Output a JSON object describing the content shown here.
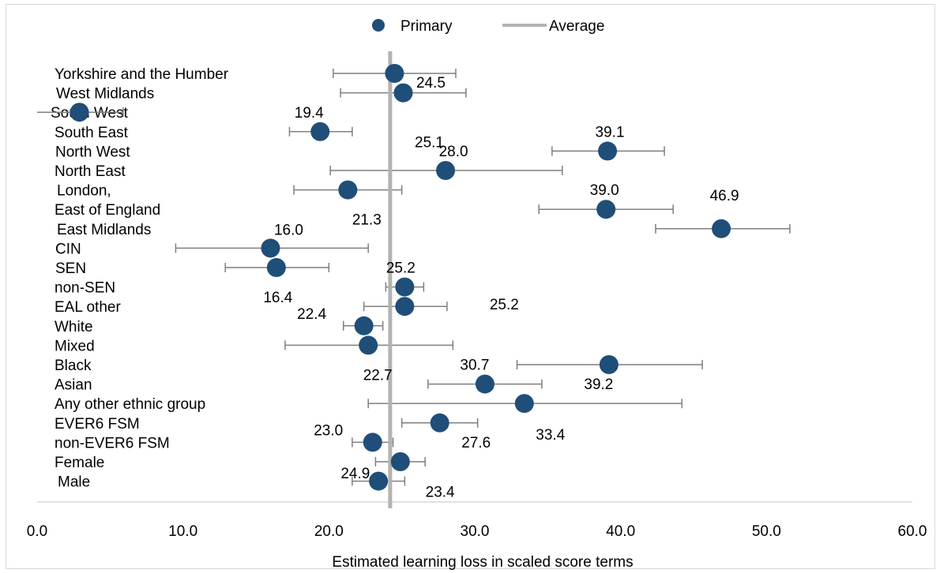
{
  "chart_data": {
    "type": "scatter",
    "xlabel": "Estimated learning loss in scaled score terms",
    "xlim": [
      0,
      60
    ],
    "x_ticks": [
      "0.0",
      "10.0",
      "20.0",
      "30.0",
      "40.0",
      "50.0",
      "60.0"
    ],
    "x_tick_values": [
      0,
      10,
      20,
      30,
      40,
      50,
      60
    ],
    "grid": false,
    "legend_position": "top",
    "legend": [
      {
        "name": "Primary",
        "marker": "circle",
        "color": "#1f4e79"
      },
      {
        "name": "Average",
        "marker": "line",
        "color": "#b3b3b3"
      }
    ],
    "average": 24.2,
    "categories": [
      "Yorkshire and the Humber",
      "West Midlands",
      "South West",
      "South East",
      "North West",
      "North East",
      "London,",
      "East of England",
      "East Midlands",
      "CIN",
      "SEN",
      "non-SEN",
      "EAL other",
      "White",
      "Mixed",
      "Black",
      "Asian",
      "Any other ethnic group",
      "EVER6 FSM",
      "non-EVER6 FSM",
      "Female",
      "Male"
    ],
    "series": [
      {
        "name": "Primary",
        "color": "#1f4e79",
        "values": [
          24.5,
          25.1,
          2.9,
          19.4,
          39.1,
          28.0,
          21.3,
          39.0,
          46.9,
          16.0,
          16.4,
          25.2,
          25.2,
          22.4,
          22.7,
          39.2,
          30.7,
          33.4,
          27.6,
          23.0,
          24.9,
          23.4
        ],
        "error_low": [
          20.3,
          20.8,
          0.0,
          17.3,
          35.3,
          20.1,
          17.6,
          34.4,
          42.4,
          9.5,
          12.9,
          23.9,
          22.4,
          21.0,
          17.0,
          32.9,
          26.8,
          22.7,
          25.0,
          21.6,
          23.2,
          21.6
        ],
        "error_high": [
          28.7,
          29.4,
          5.9,
          21.6,
          43.0,
          36.0,
          25.0,
          43.6,
          51.6,
          22.7,
          20.0,
          26.5,
          28.1,
          23.7,
          28.5,
          45.6,
          34.6,
          44.2,
          30.2,
          24.4,
          26.6,
          25.2
        ],
        "labels": [
          "24.5",
          "25.1",
          "",
          "19.4",
          "39.1",
          "28.0",
          "21.3",
          "39.0",
          "46.9",
          "16.0",
          "16.4",
          "25.2",
          "25.2",
          "22.4",
          "22.7",
          "39.2",
          "30.7",
          "33.4",
          "27.6",
          "23.0",
          "24.9",
          "23.4"
        ]
      }
    ]
  }
}
